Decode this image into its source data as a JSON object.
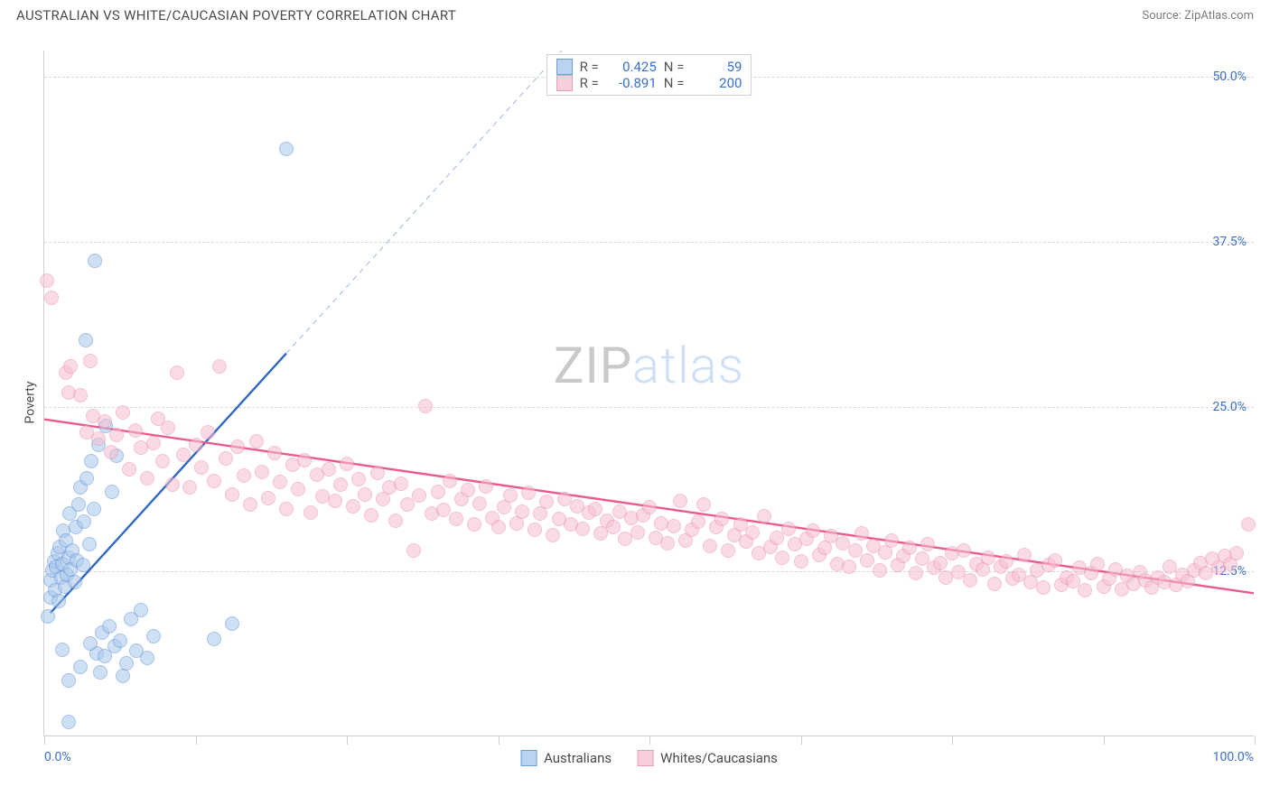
{
  "title": "AUSTRALIAN VS WHITE/CAUCASIAN POVERTY CORRELATION CHART",
  "source_label": "Source: ZipAtlas.com",
  "ylabel": "Poverty",
  "watermark": {
    "part1": "ZIP",
    "part2": "atlas"
  },
  "chart": {
    "type": "scatter",
    "background_color": "#ffffff",
    "grid_color": "#d8d8d8",
    "axis_color": "#cfcfcf",
    "tick_label_color": "#3a6fc9",
    "xlim": [
      0,
      100
    ],
    "ylim": [
      0,
      52
    ],
    "y_ticks": [
      12.5,
      25.0,
      37.5,
      50.0
    ],
    "y_tick_labels": [
      "12.5%",
      "25.0%",
      "37.5%",
      "50.0%"
    ],
    "x_tick_positions": [
      0,
      12.5,
      25,
      37.5,
      50,
      62.5,
      75,
      87.5,
      100
    ],
    "x_left_label": "0.0%",
    "x_right_label": "100.0%",
    "marker_radius": 8,
    "marker_stroke_width": 1.2,
    "trend_width_solid": 2.4,
    "trend_width_dashed": 1,
    "trend_dash": "6,5"
  },
  "series": [
    {
      "name": "Australians",
      "fill": "#a8c7ec",
      "stroke": "#5b8fd6",
      "fill_opacity": 0.55,
      "legend_swatch_fill": "#b9d3f0",
      "legend_swatch_stroke": "#6a9edb",
      "stats": {
        "R": "0.425",
        "N": "59"
      },
      "trend": {
        "x1": 0.5,
        "y1": 9.3,
        "x2": 20,
        "y2": 29,
        "extend_dash_to_y": 52,
        "color": "#2f66c4"
      },
      "points": [
        [
          0.3,
          9.0
        ],
        [
          0.5,
          10.5
        ],
        [
          0.5,
          11.8
        ],
        [
          0.7,
          12.5
        ],
        [
          0.8,
          13.2
        ],
        [
          0.9,
          11.0
        ],
        [
          1.0,
          12.8
        ],
        [
          1.1,
          13.8
        ],
        [
          1.2,
          10.2
        ],
        [
          1.3,
          14.3
        ],
        [
          1.4,
          12.0
        ],
        [
          1.5,
          13.0
        ],
        [
          1.6,
          15.5
        ],
        [
          1.7,
          11.3
        ],
        [
          1.8,
          14.8
        ],
        [
          1.9,
          12.2
        ],
        [
          2.0,
          13.5
        ],
        [
          2.1,
          16.8
        ],
        [
          2.2,
          12.6
        ],
        [
          2.3,
          14.0
        ],
        [
          2.5,
          11.6
        ],
        [
          2.6,
          15.8
        ],
        [
          2.7,
          13.3
        ],
        [
          2.8,
          17.5
        ],
        [
          3.0,
          18.8
        ],
        [
          3.2,
          12.9
        ],
        [
          3.3,
          16.2
        ],
        [
          3.5,
          19.5
        ],
        [
          3.7,
          14.5
        ],
        [
          3.9,
          20.8
        ],
        [
          4.1,
          17.2
        ],
        [
          4.3,
          6.2
        ],
        [
          4.5,
          22.0
        ],
        [
          4.8,
          7.8
        ],
        [
          5.1,
          23.5
        ],
        [
          5.4,
          8.3
        ],
        [
          5.6,
          18.5
        ],
        [
          5.8,
          6.8
        ],
        [
          6.0,
          21.2
        ],
        [
          6.3,
          7.2
        ],
        [
          6.8,
          5.5
        ],
        [
          7.2,
          8.8
        ],
        [
          7.6,
          6.4
        ],
        [
          8.0,
          9.5
        ],
        [
          8.5,
          5.9
        ],
        [
          9.0,
          7.5
        ],
        [
          3.4,
          30.0
        ],
        [
          4.2,
          36.0
        ],
        [
          14.0,
          7.3
        ],
        [
          15.5,
          8.5
        ],
        [
          2.0,
          4.2
        ],
        [
          4.6,
          4.8
        ],
        [
          6.5,
          4.5
        ],
        [
          1.5,
          6.5
        ],
        [
          3.0,
          5.2
        ],
        [
          5.0,
          6.0
        ],
        [
          2.0,
          1.0
        ],
        [
          3.8,
          7.0
        ],
        [
          20.0,
          44.5
        ]
      ]
    },
    {
      "name": "Whites/Caucasians",
      "fill": "#f7bfd1",
      "stroke": "#e98faf",
      "fill_opacity": 0.55,
      "legend_swatch_fill": "#f9cedc",
      "legend_swatch_stroke": "#ec9cb9",
      "stats": {
        "R": "-0.891",
        "N": "200"
      },
      "trend": {
        "x1": 0,
        "y1": 24.0,
        "x2": 100,
        "y2": 10.8,
        "color": "#ea5a8c"
      },
      "points": [
        [
          0.2,
          34.5
        ],
        [
          0.6,
          33.2
        ],
        [
          1.8,
          27.5
        ],
        [
          2.0,
          26.0
        ],
        [
          2.2,
          28.0
        ],
        [
          3,
          25.8
        ],
        [
          3.5,
          23.0
        ],
        [
          3.8,
          28.4
        ],
        [
          4,
          24.2
        ],
        [
          4.5,
          22.5
        ],
        [
          5,
          23.8
        ],
        [
          5.5,
          21.5
        ],
        [
          6,
          22.8
        ],
        [
          6.5,
          24.5
        ],
        [
          7,
          20.2
        ],
        [
          7.5,
          23.1
        ],
        [
          8,
          21.8
        ],
        [
          8.5,
          19.5
        ],
        [
          9,
          22.2
        ],
        [
          9.4,
          24.0
        ],
        [
          9.8,
          20.8
        ],
        [
          10.2,
          23.3
        ],
        [
          10.6,
          19.0
        ],
        [
          11,
          27.5
        ],
        [
          11.5,
          21.3
        ],
        [
          12,
          18.8
        ],
        [
          12.5,
          22.0
        ],
        [
          13,
          20.3
        ],
        [
          13.5,
          23.0
        ],
        [
          14,
          19.3
        ],
        [
          14.5,
          28.0
        ],
        [
          15,
          21.0
        ],
        [
          15.5,
          18.3
        ],
        [
          16,
          21.9
        ],
        [
          16.5,
          19.7
        ],
        [
          17,
          17.5
        ],
        [
          17.5,
          22.3
        ],
        [
          18,
          20.0
        ],
        [
          18.5,
          18.0
        ],
        [
          19,
          21.4
        ],
        [
          19.5,
          19.2
        ],
        [
          20,
          17.2
        ],
        [
          20.5,
          20.5
        ],
        [
          21,
          18.7
        ],
        [
          21.5,
          20.9
        ],
        [
          22,
          16.9
        ],
        [
          22.5,
          19.8
        ],
        [
          23,
          18.1
        ],
        [
          23.5,
          20.2
        ],
        [
          24,
          17.8
        ],
        [
          24.5,
          19.0
        ],
        [
          25,
          20.6
        ],
        [
          25.5,
          17.4
        ],
        [
          26,
          19.4
        ],
        [
          26.5,
          18.3
        ],
        [
          27,
          16.7
        ],
        [
          27.5,
          19.9
        ],
        [
          28,
          17.9
        ],
        [
          28.5,
          18.8
        ],
        [
          29,
          16.3
        ],
        [
          29.5,
          19.1
        ],
        [
          30,
          17.5
        ],
        [
          30.5,
          14.0
        ],
        [
          31,
          18.2
        ],
        [
          31.5,
          25.0
        ],
        [
          32,
          16.8
        ],
        [
          32.5,
          18.5
        ],
        [
          33,
          17.1
        ],
        [
          33.5,
          19.3
        ],
        [
          34,
          16.4
        ],
        [
          34.5,
          17.9
        ],
        [
          35,
          18.6
        ],
        [
          35.5,
          16.0
        ],
        [
          36,
          17.6
        ],
        [
          36.5,
          18.9
        ],
        [
          37,
          16.5
        ],
        [
          37.5,
          15.8
        ],
        [
          38,
          17.3
        ],
        [
          38.5,
          18.2
        ],
        [
          39,
          16.1
        ],
        [
          39.5,
          17.0
        ],
        [
          40,
          18.4
        ],
        [
          40.5,
          15.6
        ],
        [
          41,
          16.8
        ],
        [
          41.5,
          17.7
        ],
        [
          42,
          15.2
        ],
        [
          42.5,
          16.4
        ],
        [
          43,
          17.9
        ],
        [
          43.5,
          16.0
        ],
        [
          44,
          17.4
        ],
        [
          44.5,
          15.7
        ],
        [
          45,
          16.9
        ],
        [
          45.5,
          17.2
        ],
        [
          46,
          15.3
        ],
        [
          46.5,
          16.3
        ],
        [
          47,
          15.8
        ],
        [
          47.5,
          17.0
        ],
        [
          48,
          14.9
        ],
        [
          48.5,
          16.5
        ],
        [
          49,
          15.4
        ],
        [
          49.5,
          16.7
        ],
        [
          50,
          17.3
        ],
        [
          50.5,
          15.0
        ],
        [
          51,
          16.1
        ],
        [
          51.5,
          14.6
        ],
        [
          52,
          15.9
        ],
        [
          52.5,
          17.8
        ],
        [
          53,
          14.8
        ],
        [
          53.5,
          15.6
        ],
        [
          54,
          16.2
        ],
        [
          54.5,
          17.5
        ],
        [
          55,
          14.4
        ],
        [
          55.5,
          15.8
        ],
        [
          56,
          16.4
        ],
        [
          56.5,
          14.0
        ],
        [
          57,
          15.2
        ],
        [
          57.5,
          16.0
        ],
        [
          58,
          14.7
        ],
        [
          58.5,
          15.4
        ],
        [
          59,
          13.8
        ],
        [
          59.5,
          16.6
        ],
        [
          60,
          14.3
        ],
        [
          60.5,
          15.0
        ],
        [
          61,
          13.5
        ],
        [
          61.5,
          15.7
        ],
        [
          62,
          14.5
        ],
        [
          62.5,
          13.2
        ],
        [
          63,
          14.9
        ],
        [
          63.5,
          15.5
        ],
        [
          64,
          13.7
        ],
        [
          64.5,
          14.2
        ],
        [
          65,
          15.1
        ],
        [
          65.5,
          13.0
        ],
        [
          66,
          14.6
        ],
        [
          66.5,
          12.8
        ],
        [
          67,
          14.0
        ],
        [
          67.5,
          15.3
        ],
        [
          68,
          13.3
        ],
        [
          68.5,
          14.4
        ],
        [
          69,
          12.5
        ],
        [
          69.5,
          13.9
        ],
        [
          70,
          14.8
        ],
        [
          70.5,
          12.9
        ],
        [
          71,
          13.6
        ],
        [
          71.5,
          14.2
        ],
        [
          72,
          12.3
        ],
        [
          72.5,
          13.4
        ],
        [
          73,
          14.5
        ],
        [
          73.5,
          12.7
        ],
        [
          74,
          13.1
        ],
        [
          74.5,
          12.0
        ],
        [
          75,
          13.8
        ],
        [
          75.5,
          12.4
        ],
        [
          76,
          14.0
        ],
        [
          76.5,
          11.8
        ],
        [
          77,
          13.0
        ],
        [
          77.5,
          12.6
        ],
        [
          78,
          13.5
        ],
        [
          78.5,
          11.5
        ],
        [
          79,
          12.8
        ],
        [
          79.5,
          13.2
        ],
        [
          80,
          11.9
        ],
        [
          80.5,
          12.2
        ],
        [
          81,
          13.7
        ],
        [
          81.5,
          11.6
        ],
        [
          82,
          12.5
        ],
        [
          82.5,
          11.2
        ],
        [
          83,
          12.9
        ],
        [
          83.5,
          13.3
        ],
        [
          84,
          11.4
        ],
        [
          84.5,
          12.0
        ],
        [
          85,
          11.7
        ],
        [
          85.5,
          12.7
        ],
        [
          86,
          11.0
        ],
        [
          86.5,
          12.3
        ],
        [
          87,
          13.0
        ],
        [
          87.5,
          11.3
        ],
        [
          88,
          11.9
        ],
        [
          88.5,
          12.6
        ],
        [
          89,
          11.1
        ],
        [
          89.5,
          12.1
        ],
        [
          90,
          11.5
        ],
        [
          90.5,
          12.4
        ],
        [
          91,
          11.8
        ],
        [
          91.5,
          11.2
        ],
        [
          92,
          12.0
        ],
        [
          92.5,
          11.6
        ],
        [
          93,
          12.8
        ],
        [
          93.5,
          11.4
        ],
        [
          94,
          12.2
        ],
        [
          94.5,
          11.7
        ],
        [
          95,
          12.5
        ],
        [
          95.5,
          13.1
        ],
        [
          96,
          12.3
        ],
        [
          96.5,
          13.4
        ],
        [
          97,
          12.7
        ],
        [
          97.5,
          13.6
        ],
        [
          98,
          13.0
        ],
        [
          98.5,
          13.8
        ],
        [
          99.5,
          16.0
        ]
      ]
    }
  ],
  "stat_box_labels": {
    "R": "R =",
    "N": "N ="
  },
  "series_labels": [
    "Australians",
    "Whites/Caucasians"
  ]
}
